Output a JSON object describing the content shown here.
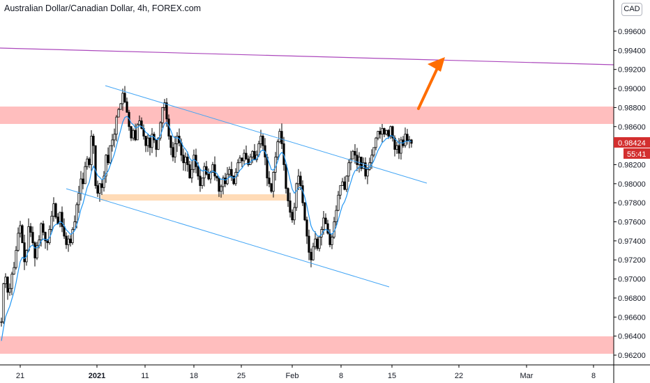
{
  "header": {
    "symbol_title": "Australian Dollar/Canadian Dollar, 4h, FOREX.com",
    "currency": "CAD"
  },
  "price_tags": {
    "last_price": "0.98424",
    "countdown": "55:41"
  },
  "colors": {
    "up_candle": "#ffffff",
    "down_candle": "#000000",
    "wick": "#000000",
    "ma_line": "#2196f3",
    "channel_line": "#42a5f5",
    "resistance_line": "#ab47bc",
    "zone_red": "#ffb7b7",
    "zone_orange": "#ffd9b3",
    "arrow": "#ff6d00",
    "price_tag": "#d32f2f"
  },
  "chart_data": {
    "type": "candlestick",
    "title": "Australian Dollar/Canadian Dollar, 4h, FOREX.com",
    "ylim": [
      0.9612,
      1.0
    ],
    "y_ticks": [
      "0.99600",
      "0.99400",
      "0.99200",
      "0.99000",
      "0.98800",
      "0.98600",
      "0.98424",
      "0.98200",
      "0.98000",
      "0.97800",
      "0.97600",
      "0.97400",
      "0.97200",
      "0.97000",
      "0.96800",
      "0.96600",
      "0.96400",
      "0.96200"
    ],
    "x_ticks": [
      {
        "label": "21",
        "bold": false
      },
      {
        "label": "2021",
        "bold": true
      },
      {
        "label": "11",
        "bold": false
      },
      {
        "label": "18",
        "bold": false
      },
      {
        "label": "25",
        "bold": false
      },
      {
        "label": "Feb",
        "bold": false
      },
      {
        "label": "8",
        "bold": false
      },
      {
        "label": "15",
        "bold": false
      },
      {
        "label": "22",
        "bold": false
      },
      {
        "label": "Mar",
        "bold": false
      },
      {
        "label": "8",
        "bold": false
      }
    ],
    "price_path": [
      [
        0,
        0.9655
      ],
      [
        3,
        0.9695
      ],
      [
        6,
        0.9702
      ],
      [
        9,
        0.9686
      ],
      [
        12,
        0.969
      ],
      [
        15,
        0.9705
      ],
      [
        18,
        0.9712
      ],
      [
        21,
        0.973
      ],
      [
        24,
        0.9748
      ],
      [
        27,
        0.9756
      ],
      [
        30,
        0.9738
      ],
      [
        33,
        0.9718
      ],
      [
        36,
        0.973
      ],
      [
        39,
        0.9755
      ],
      [
        42,
        0.9749
      ],
      [
        45,
        0.9738
      ],
      [
        48,
        0.9722
      ],
      [
        51,
        0.9735
      ],
      [
        54,
        0.9741
      ],
      [
        57,
        0.9758
      ],
      [
        60,
        0.9749
      ],
      [
        63,
        0.974
      ],
      [
        66,
        0.9738
      ],
      [
        69,
        0.9752
      ],
      [
        72,
        0.9766
      ],
      [
        75,
        0.9779
      ],
      [
        78,
        0.9765
      ],
      [
        81,
        0.9758
      ],
      [
        84,
        0.977
      ],
      [
        87,
        0.9755
      ],
      [
        90,
        0.9745
      ],
      [
        93,
        0.9736
      ],
      [
        96,
        0.9742
      ],
      [
        99,
        0.9738
      ],
      [
        102,
        0.9752
      ],
      [
        105,
        0.976
      ],
      [
        108,
        0.9778
      ],
      [
        111,
        0.979
      ],
      [
        114,
        0.9805
      ],
      [
        117,
        0.98
      ],
      [
        120,
        0.9818
      ],
      [
        123,
        0.9826
      ],
      [
        126,
        0.982
      ],
      [
        129,
        0.985
      ],
      [
        132,
        0.984
      ],
      [
        135,
        0.9798
      ],
      [
        138,
        0.979
      ],
      [
        141,
        0.98
      ],
      [
        144,
        0.9796
      ],
      [
        147,
        0.9808
      ],
      [
        150,
        0.983
      ],
      [
        153,
        0.9822
      ],
      [
        156,
        0.984
      ],
      [
        159,
        0.9846
      ],
      [
        162,
        0.9852
      ],
      [
        165,
        0.987
      ],
      [
        168,
        0.9878
      ],
      [
        171,
        0.9884
      ],
      [
        174,
        0.9895
      ],
      [
        177,
        0.9886
      ],
      [
        180,
        0.9875
      ],
      [
        183,
        0.986
      ],
      [
        186,
        0.9848
      ],
      [
        189,
        0.9856
      ],
      [
        192,
        0.9846
      ],
      [
        195,
        0.9862
      ],
      [
        198,
        0.9866
      ],
      [
        201,
        0.9858
      ],
      [
        204,
        0.985
      ],
      [
        207,
        0.984
      ],
      [
        210,
        0.9848
      ],
      [
        213,
        0.9838
      ],
      [
        216,
        0.9852
      ],
      [
        219,
        0.9846
      ],
      [
        222,
        0.9836
      ],
      [
        225,
        0.9848
      ],
      [
        228,
        0.9864
      ],
      [
        231,
        0.988
      ],
      [
        234,
        0.9885
      ],
      [
        237,
        0.9868
      ],
      [
        240,
        0.985
      ],
      [
        243,
        0.9838
      ],
      [
        246,
        0.9828
      ],
      [
        249,
        0.9842
      ],
      [
        252,
        0.985
      ],
      [
        255,
        0.9843
      ],
      [
        258,
        0.983
      ],
      [
        261,
        0.9822
      ],
      [
        264,
        0.9828
      ],
      [
        267,
        0.982
      ],
      [
        270,
        0.9806
      ],
      [
        273,
        0.9815
      ],
      [
        276,
        0.983
      ],
      [
        279,
        0.9818
      ],
      [
        282,
        0.9808
      ],
      [
        285,
        0.9798
      ],
      [
        288,
        0.9806
      ],
      [
        291,
        0.9818
      ],
      [
        294,
        0.981
      ],
      [
        297,
        0.9805
      ],
      [
        300,
        0.9812
      ],
      [
        303,
        0.982
      ],
      [
        306,
        0.9808
      ],
      [
        309,
        0.9806
      ],
      [
        312,
        0.9792
      ],
      [
        315,
        0.9797
      ],
      [
        318,
        0.9806
      ],
      [
        321,
        0.98
      ],
      [
        324,
        0.981
      ],
      [
        327,
        0.9815
      ],
      [
        330,
        0.9808
      ],
      [
        333,
        0.98
      ],
      [
        336,
        0.9812
      ],
      [
        339,
        0.9822
      ],
      [
        342,
        0.9827
      ],
      [
        345,
        0.9824
      ],
      [
        348,
        0.9832
      ],
      [
        351,
        0.9826
      ],
      [
        354,
        0.982
      ],
      [
        357,
        0.9828
      ],
      [
        360,
        0.9834
      ],
      [
        363,
        0.9825
      ],
      [
        366,
        0.983
      ],
      [
        369,
        0.9842
      ],
      [
        372,
        0.985
      ],
      [
        375,
        0.984
      ],
      [
        378,
        0.9828
      ],
      [
        381,
        0.9806
      ],
      [
        384,
        0.98
      ],
      [
        387,
        0.9792
      ],
      [
        390,
        0.9812
      ],
      [
        393,
        0.9828
      ],
      [
        396,
        0.9844
      ],
      [
        399,
        0.9855
      ],
      [
        402,
        0.9842
      ],
      [
        405,
        0.982
      ],
      [
        408,
        0.9795
      ],
      [
        411,
        0.9782
      ],
      [
        414,
        0.977
      ],
      [
        417,
        0.9762
      ],
      [
        420,
        0.9775
      ],
      [
        423,
        0.98
      ],
      [
        426,
        0.9808
      ],
      [
        429,
        0.9798
      ],
      [
        432,
        0.978
      ],
      [
        435,
        0.9762
      ],
      [
        438,
        0.9745
      ],
      [
        441,
        0.9728
      ],
      [
        444,
        0.972
      ],
      [
        447,
        0.9734
      ],
      [
        450,
        0.9742
      ],
      [
        453,
        0.9732
      ],
      [
        456,
        0.9744
      ],
      [
        459,
        0.9752
      ],
      [
        462,
        0.9764
      ],
      [
        465,
        0.9758
      ],
      [
        468,
        0.9748
      ],
      [
        471,
        0.9736
      ],
      [
        474,
        0.9744
      ],
      [
        477,
        0.976
      ],
      [
        480,
        0.9772
      ],
      [
        483,
        0.9788
      ],
      [
        486,
        0.9798
      ],
      [
        489,
        0.9802
      ],
      [
        492,
        0.9794
      ],
      [
        495,
        0.9808
      ],
      [
        498,
        0.9822
      ],
      [
        501,
        0.9826
      ],
      [
        504,
        0.9834
      ],
      [
        507,
        0.983
      ],
      [
        510,
        0.982
      ],
      [
        513,
        0.9828
      ],
      [
        516,
        0.9816
      ],
      [
        519,
        0.9822
      ],
      [
        522,
        0.9808
      ],
      [
        525,
        0.9815
      ],
      [
        528,
        0.9822
      ],
      [
        531,
        0.983
      ],
      [
        534,
        0.9838
      ],
      [
        537,
        0.9848
      ],
      [
        540,
        0.9855
      ],
      [
        543,
        0.9852
      ],
      [
        546,
        0.9858
      ],
      [
        549,
        0.9852
      ],
      [
        552,
        0.9856
      ],
      [
        555,
        0.985
      ],
      [
        558,
        0.986
      ],
      [
        561,
        0.9848
      ],
      [
        564,
        0.9836
      ],
      [
        567,
        0.984
      ],
      [
        570,
        0.9832
      ],
      [
        573,
        0.9846
      ],
      [
        576,
        0.984
      ],
      [
        579,
        0.9852
      ],
      [
        582,
        0.9845
      ],
      [
        585,
        0.9846
      ],
      [
        588,
        0.98424
      ]
    ]
  }
}
